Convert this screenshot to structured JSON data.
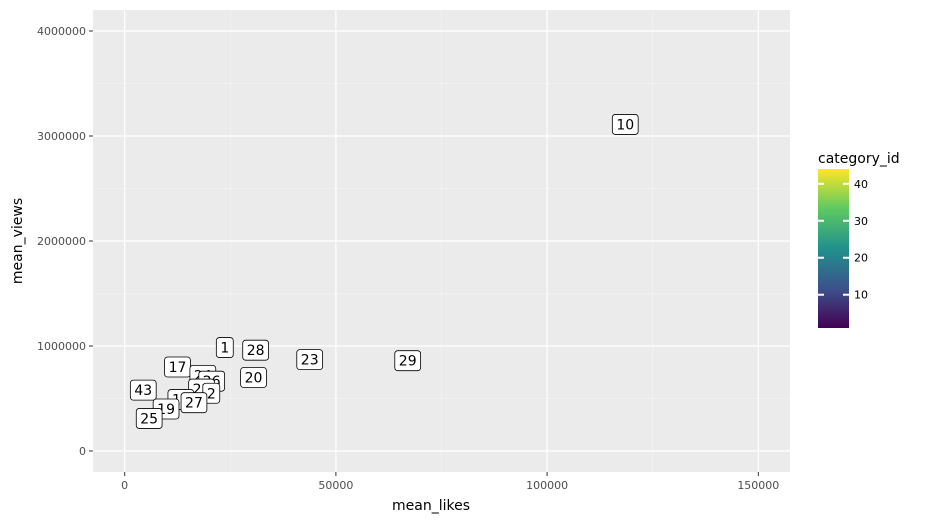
{
  "chart_data": {
    "type": "scatter",
    "xlabel": "mean_likes",
    "ylabel": "mean_views",
    "xlim": [
      -7500,
      157500
    ],
    "ylim": [
      -200000,
      4200000
    ],
    "x_ticks": [
      0,
      50000,
      100000,
      150000
    ],
    "x_tick_labels": [
      "0",
      "50000",
      "100000",
      "150000"
    ],
    "y_ticks": [
      0,
      1000000,
      2000000,
      3000000,
      4000000
    ],
    "y_tick_labels": [
      "0",
      "1000000",
      "2000000",
      "3000000",
      "4000000"
    ],
    "grid": true,
    "legend": {
      "title": "category_id",
      "position": "right",
      "type": "colorbar",
      "range": [
        1,
        44
      ],
      "ticks": [
        10,
        20,
        30,
        40
      ],
      "tick_labels": [
        "10",
        "20",
        "30",
        "40"
      ]
    },
    "colormap": [
      "#440154",
      "#3b528b",
      "#21918c",
      "#5ec962",
      "#fde725"
    ],
    "points": [
      {
        "label": "10",
        "x": 118500,
        "y": 3110000,
        "category_id": 10
      },
      {
        "label": "1",
        "x": 23700,
        "y": 985000,
        "category_id": 1
      },
      {
        "label": "28",
        "x": 31000,
        "y": 960000,
        "category_id": 28
      },
      {
        "label": "23",
        "x": 43800,
        "y": 870000,
        "category_id": 23
      },
      {
        "label": "29",
        "x": 67000,
        "y": 860000,
        "category_id": 29
      },
      {
        "label": "17",
        "x": 12500,
        "y": 800000,
        "category_id": 17
      },
      {
        "label": "24",
        "x": 18500,
        "y": 720000,
        "category_id": 24
      },
      {
        "label": "20",
        "x": 30500,
        "y": 700000,
        "category_id": 20
      },
      {
        "label": "26",
        "x": 20600,
        "y": 665000,
        "category_id": 26
      },
      {
        "label": "22",
        "x": 18200,
        "y": 590000,
        "category_id": 22
      },
      {
        "label": "2",
        "x": 20500,
        "y": 550000,
        "category_id": 2
      },
      {
        "label": "43",
        "x": 4400,
        "y": 580000,
        "category_id": 43
      },
      {
        "label": "15",
        "x": 13300,
        "y": 490000,
        "category_id": 15
      },
      {
        "label": "27",
        "x": 16400,
        "y": 460000,
        "category_id": 27
      },
      {
        "label": "19",
        "x": 9800,
        "y": 400000,
        "category_id": 19
      },
      {
        "label": "25",
        "x": 5800,
        "y": 310000,
        "category_id": 25
      }
    ]
  }
}
